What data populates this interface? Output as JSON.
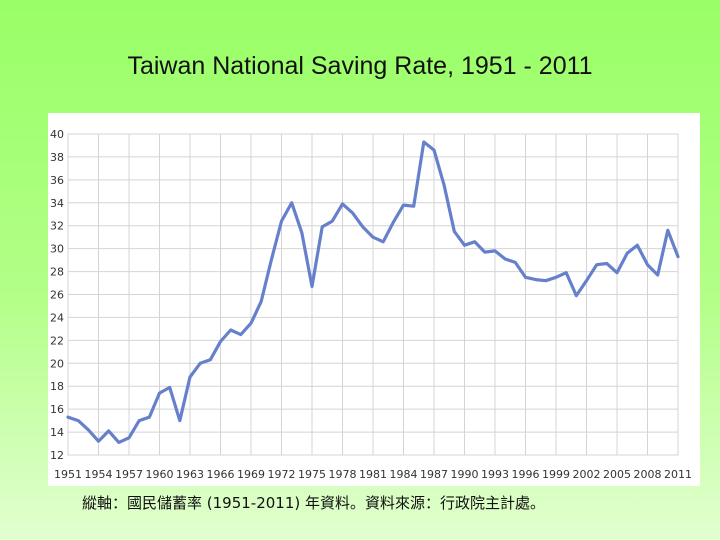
{
  "title": "Taiwan National Saving Rate, 1951 - 2011",
  "caption": "縱軸：國民儲蓄率 (1951-2011) 年資料。資料來源：行政院主計處。",
  "colors": {
    "background": "#99ff66",
    "line": "#6680cc",
    "grid": "#d4d4d4",
    "plot_bg": "#ffffff"
  },
  "chart_data": {
    "type": "line",
    "title": "Taiwan National Saving Rate, 1951 - 2011",
    "xlabel": "",
    "ylabel": "",
    "xlim": [
      1951,
      2011
    ],
    "ylim": [
      12,
      40
    ],
    "y_ticks": [
      12,
      14,
      16,
      18,
      20,
      22,
      24,
      26,
      28,
      30,
      32,
      34,
      36,
      38,
      40
    ],
    "x_ticks": [
      1951,
      1954,
      1957,
      1960,
      1963,
      1966,
      1969,
      1972,
      1975,
      1978,
      1981,
      1984,
      1987,
      1990,
      1993,
      1996,
      1999,
      2002,
      2005,
      2008,
      2011
    ],
    "grid": true,
    "legend": "none",
    "series": [
      {
        "x": [
          1951,
          1952,
          1953,
          1954,
          1955,
          1956,
          1957,
          1958,
          1959,
          1960,
          1961,
          1962,
          1963,
          1964,
          1965,
          1966,
          1967,
          1968,
          1969,
          1970,
          1971,
          1972,
          1973,
          1974,
          1975,
          1976,
          1977,
          1978,
          1979,
          1980,
          1981,
          1982,
          1983,
          1984,
          1985,
          1986,
          1987,
          1988,
          1989,
          1990,
          1991,
          1992,
          1993,
          1994,
          1995,
          1996,
          1997,
          1998,
          1999,
          2000,
          2001,
          2002,
          2003,
          2004,
          2005,
          2006,
          2007,
          2008,
          2009,
          2010,
          2011
        ],
        "values": [
          15.3,
          15.0,
          14.2,
          13.2,
          14.1,
          13.1,
          13.5,
          15.0,
          15.3,
          17.4,
          17.9,
          15.0,
          18.8,
          20.0,
          20.3,
          21.9,
          22.9,
          22.5,
          23.5,
          25.4,
          29.0,
          32.4,
          34.0,
          31.4,
          26.7,
          31.9,
          32.4,
          33.9,
          33.1,
          31.9,
          31.0,
          30.6,
          32.3,
          33.8,
          33.7,
          39.3,
          38.6,
          35.5,
          31.5,
          30.3,
          30.6,
          29.7,
          29.8,
          29.1,
          28.8,
          27.5,
          27.3,
          27.2,
          27.5,
          27.9,
          25.9,
          27.2,
          28.6,
          28.7,
          27.9,
          29.6,
          30.3,
          28.6,
          27.7,
          31.6,
          29.3
        ]
      }
    ]
  }
}
